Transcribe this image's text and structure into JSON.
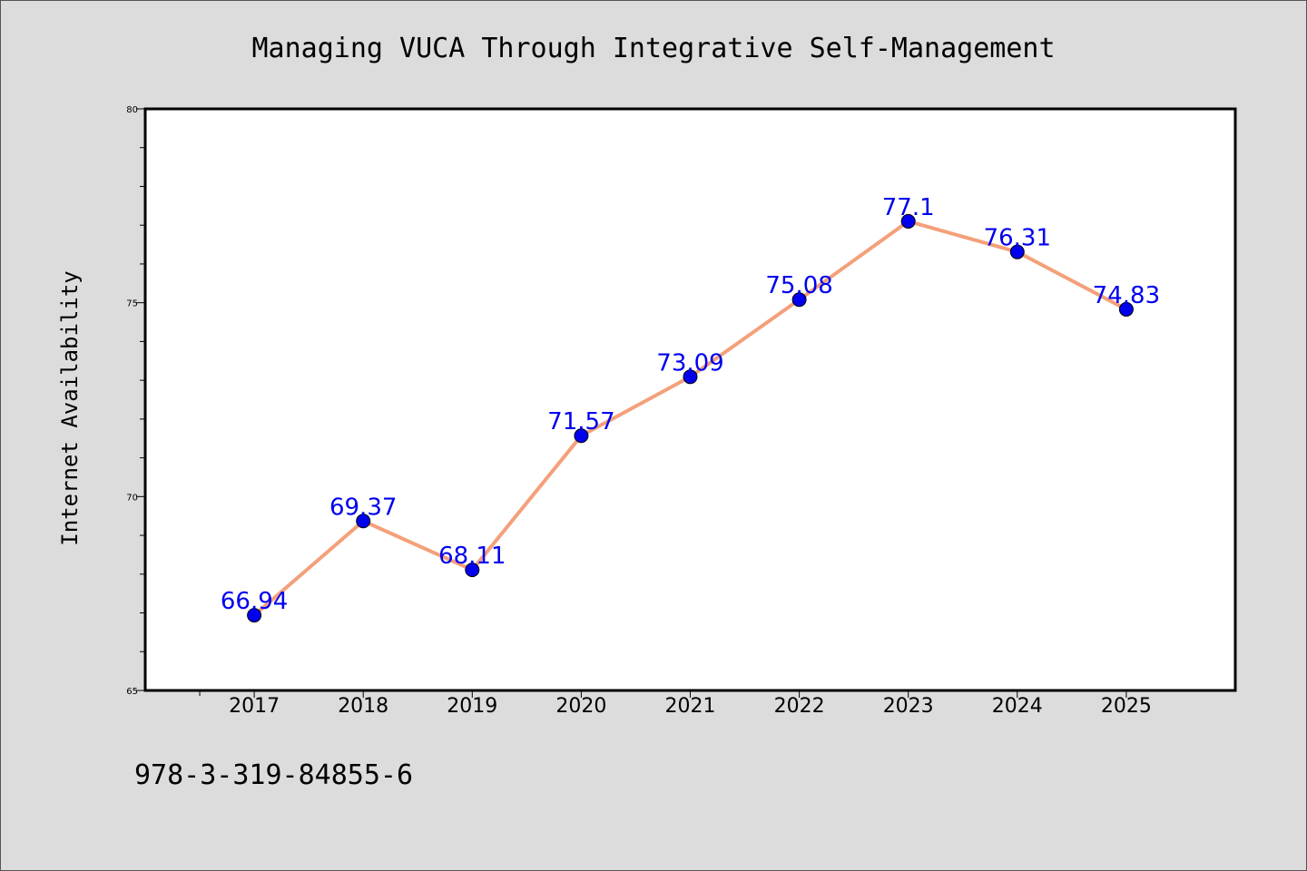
{
  "chart_data": {
    "type": "line",
    "title": "Managing VUCA Through Integrative Self-Management",
    "xlabel": "",
    "ylabel": "Internet Availability",
    "x": [
      "2017",
      "2018",
      "2019",
      "2020",
      "2021",
      "2022",
      "2023",
      "2024",
      "2025"
    ],
    "series": [
      {
        "values": [
          66.94,
          69.37,
          68.11,
          71.57,
          73.09,
          75.08,
          77.1,
          76.31,
          74.83
        ],
        "value_labels": [
          "66.94",
          "69.37",
          "68.11",
          "71.57",
          "73.09",
          "75.08",
          "77.1",
          "76.31",
          "74.83"
        ],
        "line_color": "#f4a07a",
        "marker_color": "#0000ee",
        "label_color": "#0000ee"
      }
    ],
    "ylim": [
      65,
      80
    ],
    "yticks": [
      "65",
      "70",
      "75",
      "80"
    ],
    "xlim": [
      2016,
      2026
    ],
    "grid": false,
    "legend": "none"
  },
  "footer": {
    "isbn": "978-3-319-84855-6"
  },
  "colors": {
    "background": "#dcdcdc",
    "plot_area": "#ffffff",
    "axis": "#000000"
  }
}
